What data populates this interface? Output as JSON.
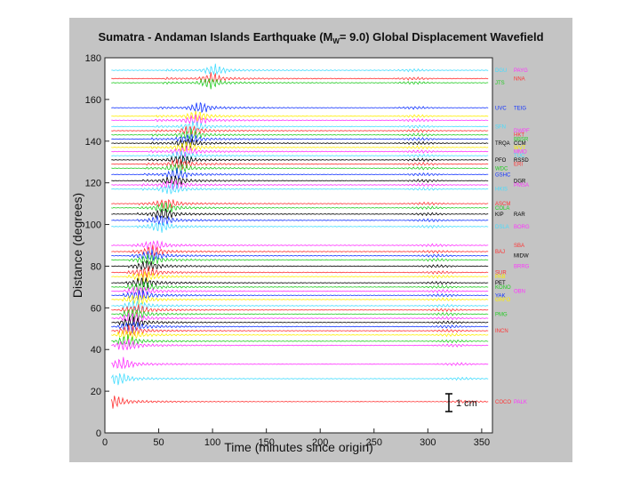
{
  "chart_data": {
    "type": "line",
    "title_main": "Sumatra - Andaman Islands Earthquake (M",
    "title_sub": "W",
    "title_end": "= 9.0) Global Displacement Wavefield",
    "xlabel": "Time (minutes since origin)",
    "ylabel": "Distance (degrees)",
    "xlim": [
      0,
      360
    ],
    "ylim": [
      0,
      180
    ],
    "xticks": [
      "0",
      "50",
      "100",
      "150",
      "200",
      "250",
      "300",
      "350"
    ],
    "yticks": [
      "0",
      "20",
      "40",
      "60",
      "80",
      "100",
      "120",
      "140",
      "160",
      "180"
    ],
    "scale_bar_label": "1 cm",
    "grid": false,
    "series": [
      {
        "distance": 174,
        "color": "#44ddff",
        "station": "DGU",
        "station2": "PAYG",
        "color2": "#ff33ff"
      },
      {
        "distance": 170,
        "color": "#ff3333",
        "station": "",
        "station2": "NNA",
        "color2": "#ff3333"
      },
      {
        "distance": 168,
        "color": "#22cc22",
        "station": "JTS",
        "station2": "",
        "color2": ""
      },
      {
        "distance": 156,
        "color": "#1133ff",
        "station": "UVC",
        "station2": "TEIG",
        "color2": "#1133ff"
      },
      {
        "distance": 152,
        "color": "#ffee00",
        "station": "",
        "station2": "",
        "color2": ""
      },
      {
        "distance": 150,
        "color": "#ff33ff",
        "station": "",
        "station2": "",
        "color2": ""
      },
      {
        "distance": 147,
        "color": "#44ddff",
        "station": "SFN",
        "station2": "",
        "color2": ""
      },
      {
        "distance": 145,
        "color": "#ff3333",
        "station": "",
        "station2": "DWPF",
        "color2": "#ff33ff"
      },
      {
        "distance": 143,
        "color": "#22cc22",
        "station": "",
        "station2": "HKT",
        "color2": "#ff3333"
      },
      {
        "distance": 141,
        "color": "#1133ff",
        "station": "",
        "station2": "BBSR",
        "color2": "#22cc22"
      },
      {
        "distance": 139,
        "color": "#000000",
        "station": "TRQA",
        "station2": "CCM",
        "color2": "#000000"
      },
      {
        "distance": 137,
        "color": "#ffee00",
        "station": "",
        "station2": "WVT",
        "color2": "#ffee00"
      },
      {
        "distance": 135,
        "color": "#ff33ff",
        "station": "",
        "station2": "MMO",
        "color2": "#ff33ff"
      },
      {
        "distance": 133,
        "color": "#44ddff",
        "station": "",
        "station2": "TUC",
        "color2": "#44ddff"
      },
      {
        "distance": 131,
        "color": "#000000",
        "station": "PFO",
        "station2": "RSSD",
        "color2": "#000000"
      },
      {
        "distance": 129,
        "color": "#ff3333",
        "station": "",
        "station2": "ERI",
        "color2": "#ff3333"
      },
      {
        "distance": 127,
        "color": "#22cc22",
        "station": "WDC",
        "station2": "",
        "color2": ""
      },
      {
        "distance": 124,
        "color": "#1133ff",
        "station": "GSHC",
        "station2": "",
        "color2": ""
      },
      {
        "distance": 121,
        "color": "#000000",
        "station": "",
        "station2": "DGR",
        "color2": "#000000"
      },
      {
        "distance": 119,
        "color": "#ff33ff",
        "station": "",
        "station2": "PMSA",
        "color2": "#ff33ff"
      },
      {
        "distance": 117,
        "color": "#44ddff",
        "station": "HKIS",
        "station2": "",
        "color2": ""
      },
      {
        "distance": 110,
        "color": "#ff3333",
        "station": "ASCM",
        "station2": "",
        "color2": ""
      },
      {
        "distance": 108,
        "color": "#22cc22",
        "station": "COLA",
        "station2": "",
        "color2": ""
      },
      {
        "distance": 105,
        "color": "#000000",
        "station": "KIP",
        "station2": "RAR",
        "color2": "#000000"
      },
      {
        "distance": 102,
        "color": "#1133ff",
        "station": "",
        "station2": "",
        "color2": ""
      },
      {
        "distance": 99,
        "color": "#44ddff",
        "station": "DSLA",
        "station2": "BORG",
        "color2": "#ff33ff"
      },
      {
        "distance": 90,
        "color": "#ff33ff",
        "station": "",
        "station2": "SBA",
        "color2": "#ff3333"
      },
      {
        "distance": 87,
        "color": "#ff3333",
        "station": "BAJ",
        "station2": "",
        "color2": ""
      },
      {
        "distance": 85,
        "color": "#1133ff",
        "station": "",
        "station2": "MIDW",
        "color2": "#000000"
      },
      {
        "distance": 83,
        "color": "#22cc22",
        "station": "",
        "station2": "",
        "color2": ""
      },
      {
        "distance": 80,
        "color": "#000000",
        "station": "",
        "station2": "BRRG",
        "color2": "#ff33ff"
      },
      {
        "distance": 77,
        "color": "#ff3333",
        "station": "SUR",
        "station2": "",
        "color2": ""
      },
      {
        "distance": 75,
        "color": "#ffee00",
        "station": "PAB",
        "station2": "",
        "color2": ""
      },
      {
        "distance": 72,
        "color": "#000000",
        "station": "PET",
        "station2": "",
        "color2": ""
      },
      {
        "distance": 70,
        "color": "#22cc22",
        "station": "KONO",
        "station2": "",
        "color2": ""
      },
      {
        "distance": 68,
        "color": "#ff33ff",
        "station": "",
        "station2": "OBN",
        "color2": "#ff33ff"
      },
      {
        "distance": 66,
        "color": "#1133ff",
        "station": "YAK",
        "station2": "",
        "color2": ""
      },
      {
        "distance": 64,
        "color": "#ffee00",
        "station": "GRFO",
        "station2": "",
        "color2": ""
      },
      {
        "distance": 61,
        "color": "#44ddff",
        "station": "",
        "station2": "",
        "color2": ""
      },
      {
        "distance": 59,
        "color": "#ff3333",
        "station": "",
        "station2": "",
        "color2": ""
      },
      {
        "distance": 57,
        "color": "#22cc22",
        "station": "PMG",
        "station2": "",
        "color2": ""
      },
      {
        "distance": 55,
        "color": "#ff33ff",
        "station": "",
        "station2": "",
        "color2": ""
      },
      {
        "distance": 53,
        "color": "#000000",
        "station": "",
        "station2": "",
        "color2": ""
      },
      {
        "distance": 51,
        "color": "#1133ff",
        "station": "",
        "station2": "",
        "color2": ""
      },
      {
        "distance": 49,
        "color": "#ff3333",
        "station": "INCN",
        "station2": "",
        "color2": ""
      },
      {
        "distance": 47,
        "color": "#ffee00",
        "station": "",
        "station2": "",
        "color2": ""
      },
      {
        "distance": 44,
        "color": "#22cc22",
        "station": "",
        "station2": "",
        "color2": ""
      },
      {
        "distance": 42,
        "color": "#ff33ff",
        "station": "",
        "station2": "",
        "color2": ""
      },
      {
        "distance": 33,
        "color": "#ff33ff",
        "station": "",
        "station2": "",
        "color2": ""
      },
      {
        "distance": 26,
        "color": "#44ddff",
        "station": "",
        "station2": "",
        "color2": ""
      },
      {
        "distance": 15,
        "color": "#ff3333",
        "station": "COCO",
        "station2": "PALK",
        "color2": "#ff33ff"
      }
    ]
  }
}
